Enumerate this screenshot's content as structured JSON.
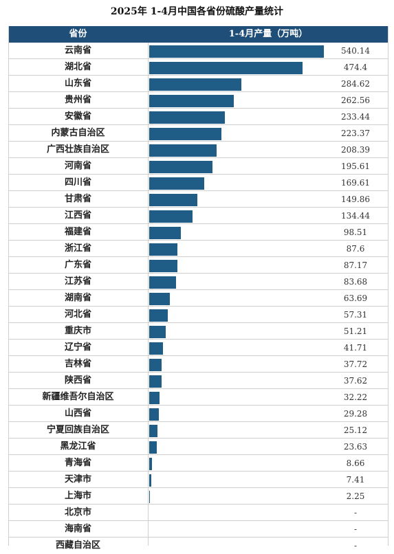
{
  "chart_data": {
    "type": "bar",
    "title": "2025年 1-4月中国各省份硫酸产量统计",
    "header": {
      "col1": "省份",
      "col2": "1-4月产量（万吨）"
    },
    "colors": {
      "header_bg": "#1f4e78",
      "bar": "#1f5c86",
      "grid": "#cfcfcf"
    },
    "categories": [
      "云南省",
      "湖北省",
      "山东省",
      "贵州省",
      "安徽省",
      "内蒙古自治区",
      "广西壮族自治区",
      "河南省",
      "四川省",
      "甘肃省",
      "江西省",
      "福建省",
      "浙江省",
      "广东省",
      "江苏省",
      "湖南省",
      "河北省",
      "重庆市",
      "辽宁省",
      "吉林省",
      "陕西省",
      "新疆维吾尔自治区",
      "山西省",
      "宁夏回族自治区",
      "黑龙江省",
      "青海省",
      "天津市",
      "上海市",
      "北京市",
      "海南省",
      "西藏自治区"
    ],
    "values": [
      540.14,
      474.4,
      284.62,
      262.56,
      233.44,
      223.37,
      208.39,
      195.61,
      169.61,
      149.86,
      134.44,
      98.51,
      87.6,
      87.17,
      83.68,
      63.69,
      57.31,
      51.21,
      41.71,
      37.72,
      37.62,
      32.22,
      29.28,
      25.12,
      23.63,
      8.66,
      7.41,
      2.25,
      null,
      null,
      null
    ],
    "value_labels": [
      "540.14",
      "474.4",
      "284.62",
      "262.56",
      "233.44",
      "223.37",
      "208.39",
      "195.61",
      "169.61",
      "149.86",
      "134.44",
      "98.51",
      "87.6",
      "87.17",
      "83.68",
      "63.69",
      "57.31",
      "51.21",
      "41.71",
      "37.72",
      "37.62",
      "32.22",
      "29.28",
      "25.12",
      "23.63",
      "8.66",
      "7.41",
      "2.25",
      "-",
      "-",
      "-"
    ]
  }
}
